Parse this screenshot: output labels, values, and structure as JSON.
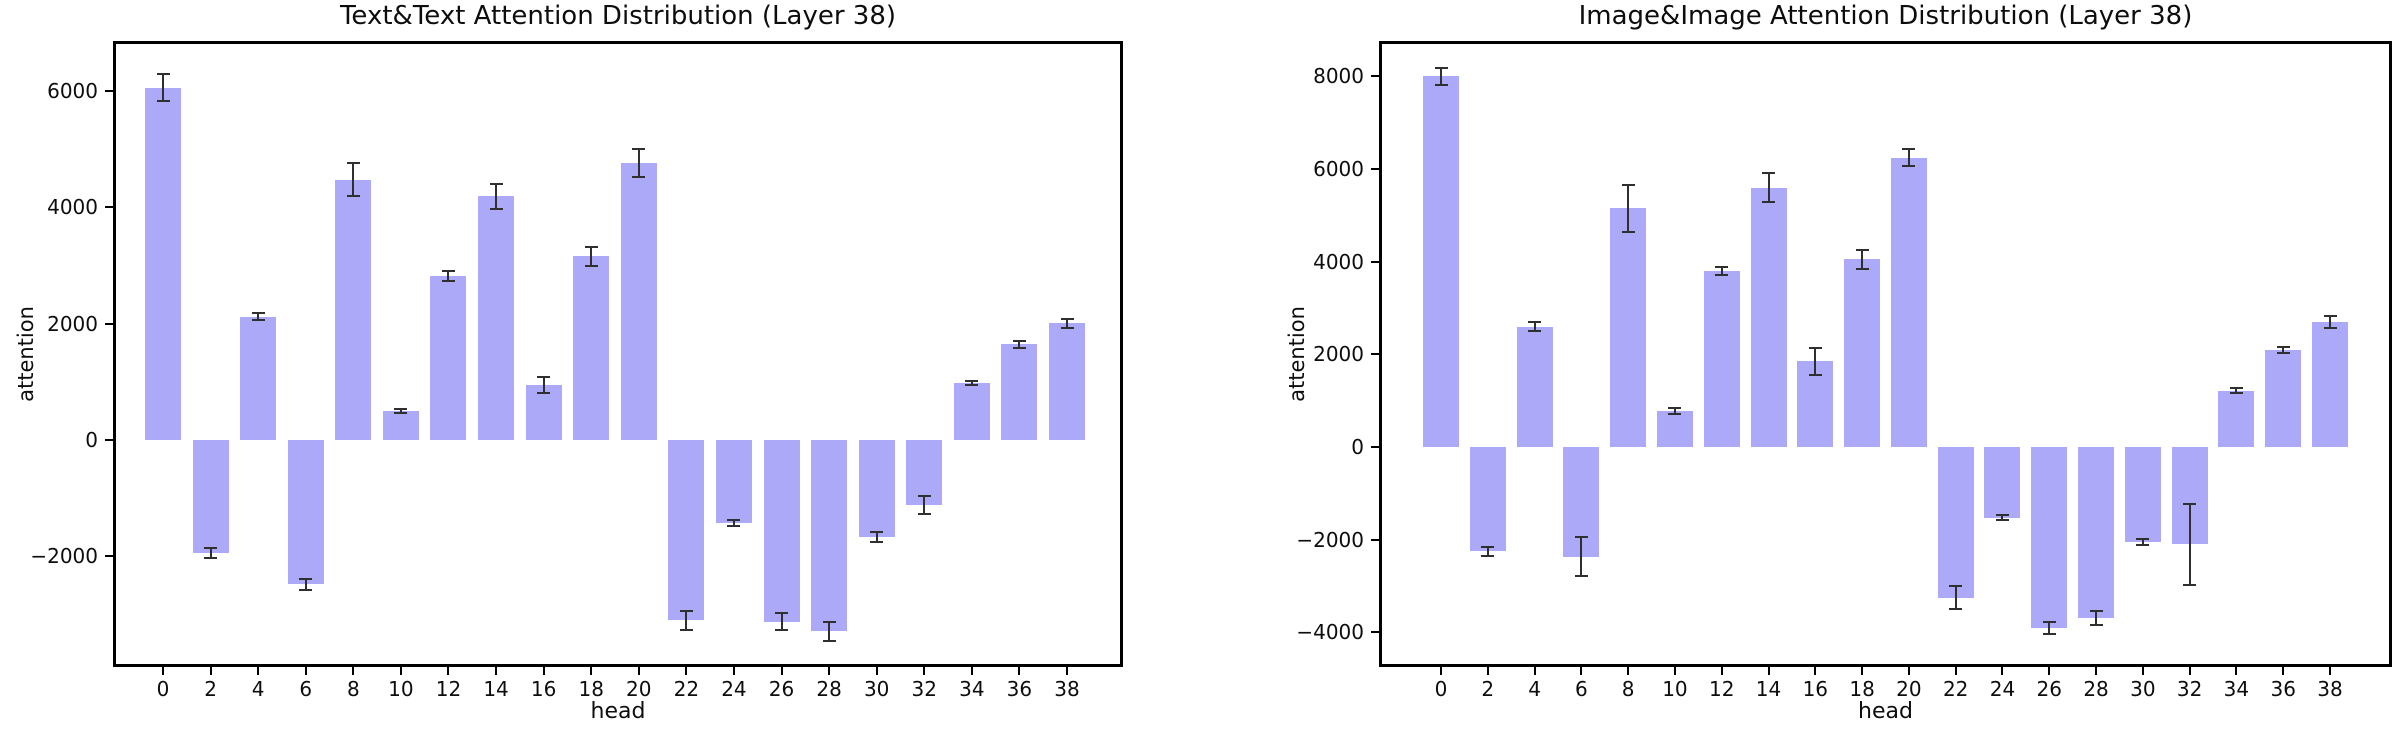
{
  "figure": {
    "background": "#ffffff",
    "description_left_panel": "Text&Text attention bar chart",
    "description_right_panel": "Image&Image attention bar chart"
  },
  "chart_data": [
    {
      "type": "bar",
      "title": "Text&Text Attention Distribution (Layer 38)",
      "xlabel": "head",
      "ylabel": "attention",
      "legend": "none",
      "grid": false,
      "bar_color": "#aba9f8",
      "error_color": "#2f2f2f",
      "categories": [
        0,
        2,
        4,
        6,
        8,
        10,
        12,
        14,
        16,
        18,
        20,
        22,
        24,
        26,
        28,
        30,
        32,
        34,
        36,
        38
      ],
      "values": [
        6060,
        -1940,
        2120,
        -2480,
        4480,
        500,
        2820,
        4190,
        950,
        3160,
        4760,
        -3100,
        -1430,
        -3120,
        -3290,
        -1670,
        -1120,
        980,
        1650,
        2010
      ],
      "errors": [
        230,
        90,
        60,
        90,
        280,
        40,
        90,
        210,
        140,
        160,
        240,
        160,
        50,
        150,
        160,
        90,
        150,
        40,
        60,
        80
      ],
      "ylim": [
        -3850,
        6810
      ],
      "yticks": [
        -2000,
        0,
        2000,
        4000,
        6000
      ]
    },
    {
      "type": "bar",
      "title": "Image&Image Attention Distribution (Layer 38)",
      "xlabel": "head",
      "ylabel": "attention",
      "legend": "none",
      "grid": false,
      "bar_color": "#aba9f8",
      "error_color": "#2f2f2f",
      "categories": [
        0,
        2,
        4,
        6,
        8,
        10,
        12,
        14,
        16,
        18,
        20,
        22,
        24,
        26,
        28,
        30,
        32,
        34,
        36,
        38
      ],
      "values": [
        8000,
        -2250,
        2600,
        -2370,
        5150,
        780,
        3800,
        5600,
        1850,
        4050,
        6250,
        -3250,
        -1520,
        -3900,
        -3680,
        -2050,
        -2100,
        1220,
        2100,
        2700
      ],
      "errors": [
        190,
        100,
        90,
        420,
        500,
        60,
        90,
        320,
        300,
        210,
        180,
        250,
        60,
        130,
        150,
        60,
        870,
        60,
        70,
        120
      ],
      "ylim": [
        -4680,
        8700
      ],
      "yticks": [
        -4000,
        -2000,
        0,
        2000,
        4000,
        6000,
        8000
      ]
    }
  ]
}
